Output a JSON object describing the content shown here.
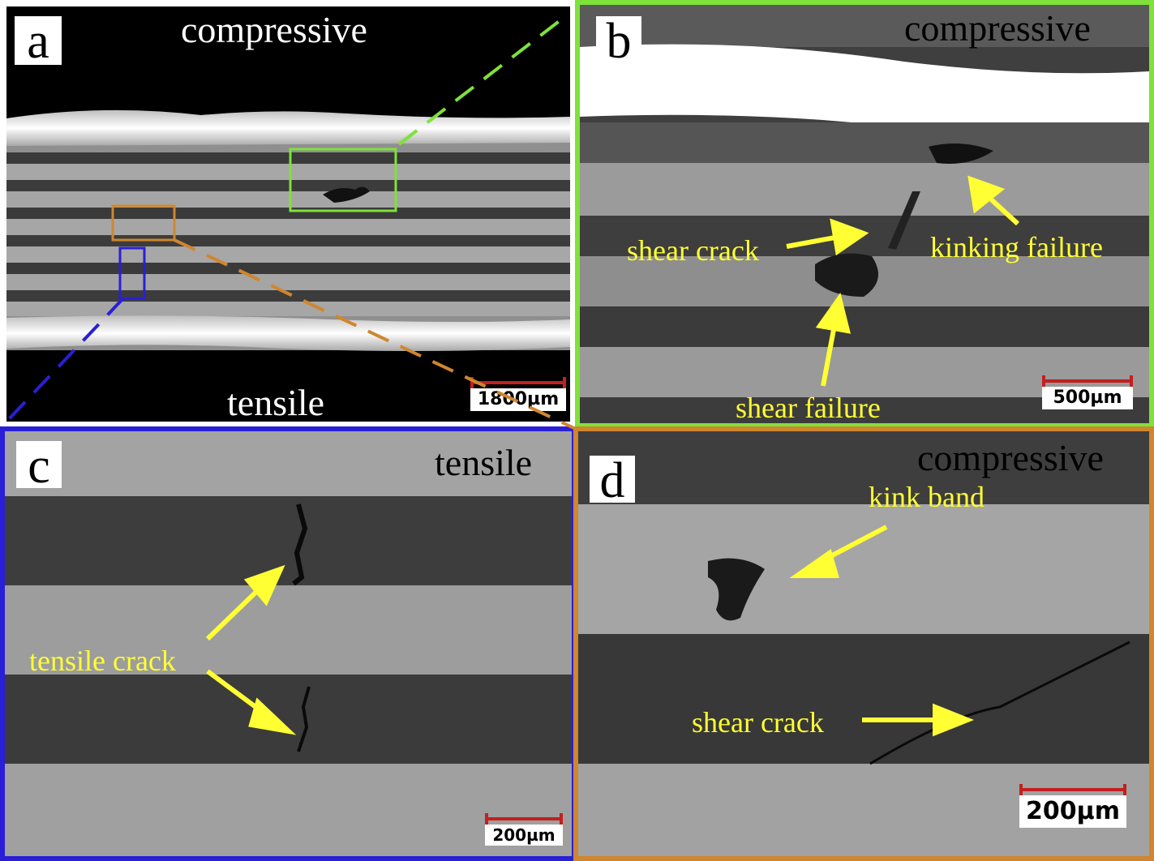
{
  "figure": {
    "panel_a": {
      "letter": "a",
      "top_label": "compressive",
      "bottom_label": "tensile",
      "scale_bar": "1800µm",
      "frame_color": "#000000"
    },
    "panel_b": {
      "letter": "b",
      "top_label": "compressive",
      "annotations": [
        "shear crack",
        "kinking failure",
        "shear failure"
      ],
      "scale_bar": "500µm",
      "frame_color": "#7ee23a"
    },
    "panel_c": {
      "letter": "c",
      "top_label": "tensile",
      "annotations": [
        "tensile crack"
      ],
      "scale_bar": "200µm",
      "frame_color": "#2a1fd6"
    },
    "panel_d": {
      "letter": "d",
      "top_label": "compressive",
      "annotations": [
        "kink band",
        "shear crack"
      ],
      "scale_bar": "200µm",
      "frame_color": "#d0862f"
    },
    "colors": {
      "annotation": "#ffff33",
      "scale_bar": "#c2201f",
      "zoom_green": "#7ee23a",
      "zoom_orange": "#d0862f",
      "zoom_blue": "#2a1fd6"
    }
  }
}
